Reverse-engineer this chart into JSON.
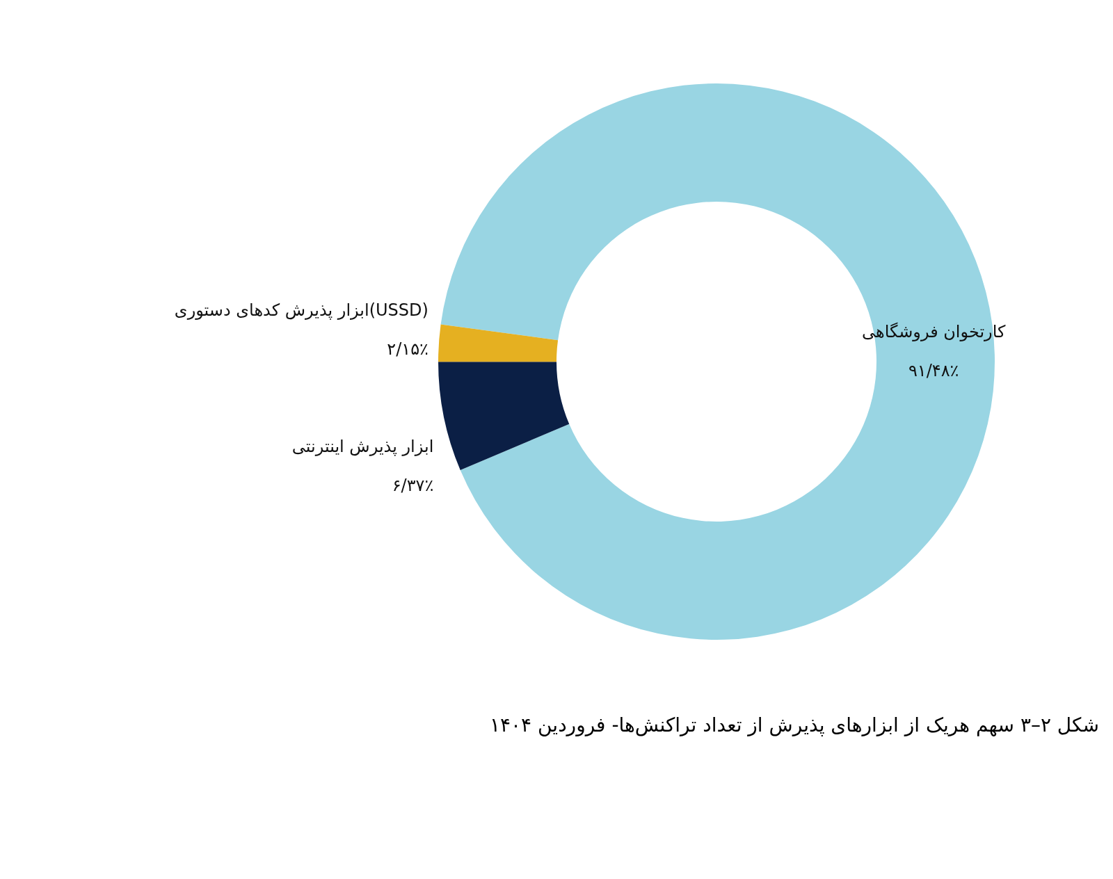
{
  "chart_data": {
    "type": "donut",
    "title": "شکل ۲–۳ سهم هریک از ابزارهای پذیرش از تعداد تراکنش‌ها- فروردین ۱۴۰۴",
    "categories": [
      "کارتخوان فروشگاهی",
      "ابزار پذیرش اینترنتی",
      "ابزار پذیرش کدهای دستوری(USSD)"
    ],
    "values": [
      91.48,
      6.37,
      2.15
    ],
    "colors": [
      "#99d5e3",
      "#0b1f45",
      "#e5b021"
    ],
    "value_labels": [
      "۹۱/۴۸٪",
      "۶/۳۷٪",
      "۲/۱۵٪"
    ]
  }
}
